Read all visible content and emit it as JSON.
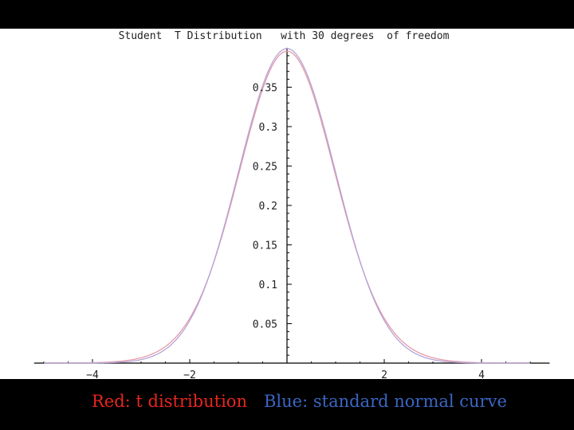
{
  "colors": {
    "background": "#000000",
    "plot_background": "#ffffff",
    "red_curve": "#e59aa6",
    "blue_curve": "#b3a4d8",
    "axis": "#000000",
    "caption_red": "#e8251f",
    "caption_blue": "#3a66c4"
  },
  "caption": {
    "red_label": "Red: t distribution",
    "blue_label": "Blue: standard normal curve"
  },
  "chart_data": {
    "type": "line",
    "title": "Student  T Distribution   with 30 degrees  of freedom",
    "xlabel": "",
    "ylabel": "",
    "xlim": [
      -5.2,
      5.4
    ],
    "ylim": [
      0,
      0.4
    ],
    "x_ticks": [
      -4,
      -2,
      2,
      4
    ],
    "x_tick_labels": [
      "−4",
      "−2",
      "2",
      "4"
    ],
    "y_ticks": [
      0.05,
      0.1,
      0.15,
      0.2,
      0.25,
      0.3,
      0.35
    ],
    "y_tick_labels": [
      "0.05",
      "0.1",
      "0.15",
      "0.2",
      "0.25",
      "0.3",
      "0.35"
    ],
    "grid": false,
    "legend": "caption below plot",
    "series": [
      {
        "name": "t distribution",
        "color": "#e59aa6",
        "x": [
          -5,
          -4.5,
          -4,
          -3.5,
          -3,
          -2.5,
          -2,
          -1.5,
          -1,
          -0.5,
          0,
          0.5,
          1,
          1.5,
          2,
          2.5,
          3,
          3.5,
          4,
          4.5,
          5
        ],
        "y": [
          1e-05,
          9e-05,
          0.0005,
          0.0017,
          0.0051,
          0.0179,
          0.0544,
          0.1286,
          0.2369,
          0.3474,
          0.3956,
          0.3474,
          0.2369,
          0.1286,
          0.0544,
          0.0179,
          0.0051,
          0.0017,
          0.0005,
          9e-05,
          1e-05
        ]
      },
      {
        "name": "standard normal curve",
        "color": "#b3a4d8",
        "x": [
          -5,
          -4.5,
          -4,
          -3.5,
          -3,
          -2.5,
          -2,
          -1.5,
          -1,
          -0.5,
          0,
          0.5,
          1,
          1.5,
          2,
          2.5,
          3,
          3.5,
          4,
          4.5,
          5
        ],
        "y": [
          1.5e-06,
          1.6e-05,
          0.000134,
          0.000873,
          0.00443,
          0.0175,
          0.054,
          0.1295,
          0.242,
          0.3521,
          0.3989,
          0.3521,
          0.242,
          0.1295,
          0.054,
          0.0175,
          0.00443,
          0.000873,
          0.000134,
          1.6e-05,
          1.5e-06
        ]
      }
    ]
  }
}
